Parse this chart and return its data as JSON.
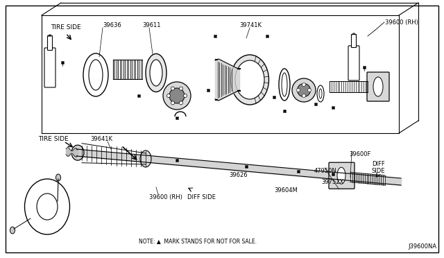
{
  "bg_color": "#ffffff",
  "border_color": "#000000",
  "line_color": "#000000",
  "text_color": "#000000",
  "fig_width": 6.4,
  "fig_height": 3.72,
  "dpi": 100,
  "note": "NOTE: ▲  MARK STANDS FOR NOT FOR SALE.",
  "diagram_id": "J39600NA",
  "label_39636": "39636",
  "label_39611": "39611",
  "label_39741K": "39741K",
  "label_39600rh_top": "39600 (RH)",
  "label_39641K": "39641K",
  "label_39626": "39626",
  "label_39600F": "39600F",
  "label_47950N": "47950N",
  "label_39752X": "39752X",
  "label_diff_side_r": "DIFF\nSIDE",
  "label_39600rh_bot": "39600 (RH)",
  "label_diff_side_b": "DIFF SIDE",
  "label_39604M": "39604M",
  "label_tire_side_top": "TIRE SIDE",
  "label_tire_side_bot": "TIRE SIDE",
  "star_color": "#000000"
}
